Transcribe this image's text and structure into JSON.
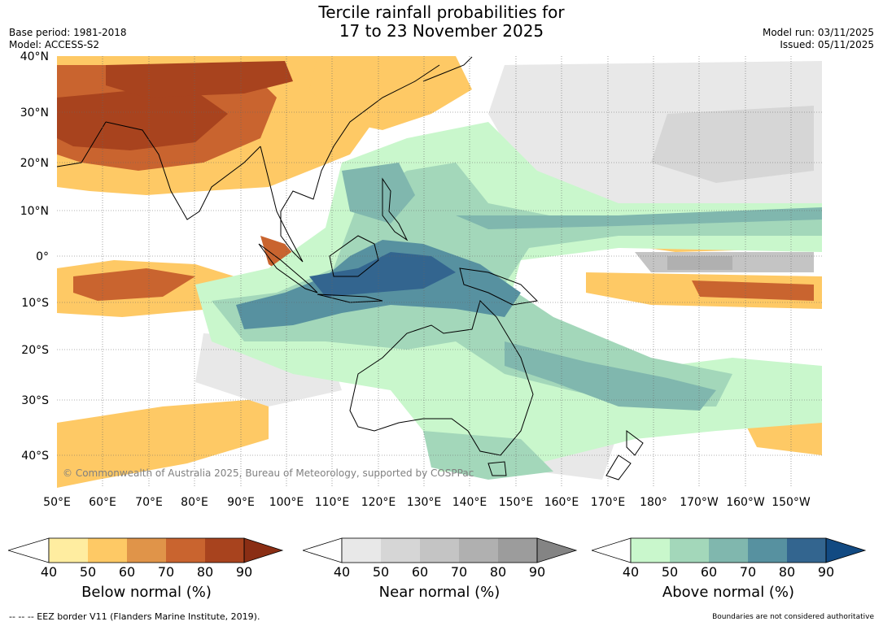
{
  "title": {
    "line1": "Tercile rainfall probabilities for",
    "line2": "17 to 23 November 2025"
  },
  "meta_left": {
    "base_period": "Base period: 1981-2018",
    "model": "Model: ACCESS-S2"
  },
  "meta_right": {
    "model_run": "Model run: 03/11/2025",
    "issued": "Issued: 05/11/2025"
  },
  "map": {
    "lat_labels": [
      "40°N",
      "30°N",
      "20°N",
      "10°N",
      "0°",
      "10°S",
      "20°S",
      "30°S",
      "40°S"
    ],
    "lon_labels": [
      "50°E",
      "60°E",
      "70°E",
      "80°E",
      "90°E",
      "100°E",
      "110°E",
      "120°E",
      "130°E",
      "140°E",
      "150°E",
      "160°E",
      "170°E",
      "180°",
      "170°W",
      "160°W",
      "150°W"
    ],
    "copyright": "© Commonwealth of Australia 2025, Bureau of Meteorology, supported by COSPPac",
    "colors": {
      "ocean_background": "#ffffff",
      "coastline": "#000000",
      "borders": "#808080",
      "grid": "#666666"
    }
  },
  "colorbars": [
    {
      "name": "below",
      "title": "Below normal (%)",
      "ticks": [
        "40",
        "50",
        "60",
        "70",
        "80",
        "90"
      ],
      "colors": [
        "#ffffff",
        "#ffeda0",
        "#fec965",
        "#e09449",
        "#c9642f",
        "#a8431e",
        "#8a2e14"
      ]
    },
    {
      "name": "near",
      "title": "Near normal (%)",
      "ticks": [
        "40",
        "50",
        "60",
        "70",
        "80",
        "90"
      ],
      "colors": [
        "#ffffff",
        "#e8e8e8",
        "#d6d6d6",
        "#c4c4c4",
        "#b0b0b0",
        "#9c9c9c",
        "#848484"
      ]
    },
    {
      "name": "above",
      "title": "Above normal (%)",
      "ticks": [
        "40",
        "50",
        "60",
        "70",
        "80",
        "90"
      ],
      "colors": [
        "#ffffff",
        "#c9f7cc",
        "#a3d7ba",
        "#80b7ae",
        "#5791a0",
        "#33658f",
        "#124a82"
      ]
    }
  ],
  "footer": {
    "eez_note": "--  --  -- EEZ border V11 (Flanders Marine Institute, 2019).",
    "boundaries_note": "Boundaries are not considered authoritative"
  }
}
